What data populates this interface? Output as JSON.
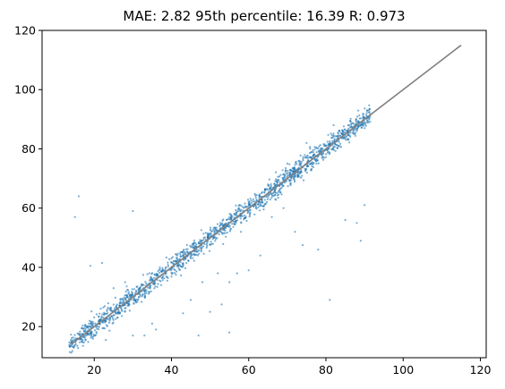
{
  "chart_data": {
    "type": "scatter",
    "title": "MAE: 2.82 95th percentile: 16.39 R: 0.973",
    "xlabel": "",
    "ylabel": "",
    "xlim": [
      6.5,
      121.5
    ],
    "ylim": [
      9.5,
      120
    ],
    "x_ticks": [
      20,
      40,
      60,
      80,
      100,
      120
    ],
    "y_ticks": [
      20,
      40,
      60,
      80,
      100,
      120
    ],
    "grid": false,
    "legend": "none",
    "point_color": "#1f77b4",
    "reference_line": {
      "color": "#808080",
      "x": [
        14,
        115
      ],
      "y": [
        14,
        115
      ]
    },
    "series": [
      {
        "values": [
          [
            16,
            64
          ],
          [
            15,
            57
          ],
          [
            30,
            59
          ],
          [
            14,
            15.5
          ],
          [
            19,
            40.5
          ],
          [
            22,
            41.5
          ],
          [
            23,
            15.5
          ],
          [
            24,
            22
          ],
          [
            26,
            23
          ],
          [
            30,
            17
          ],
          [
            33,
            17
          ],
          [
            35,
            21
          ],
          [
            36,
            19
          ],
          [
            40,
            43
          ],
          [
            43,
            24.5
          ],
          [
            45,
            29
          ],
          [
            47,
            17
          ],
          [
            50,
            25
          ],
          [
            53,
            27.5
          ],
          [
            55,
            18
          ],
          [
            57,
            38
          ],
          [
            60,
            39
          ],
          [
            62,
            62
          ],
          [
            63,
            44
          ],
          [
            66,
            57
          ],
          [
            69,
            60
          ],
          [
            72,
            52
          ],
          [
            74,
            47.5
          ],
          [
            78,
            46
          ],
          [
            81,
            29
          ],
          [
            85,
            56
          ],
          [
            88,
            55
          ],
          [
            89,
            49
          ],
          [
            90,
            61
          ],
          [
            70,
            75
          ],
          [
            75,
            82
          ],
          [
            25,
            33
          ],
          [
            28,
            35
          ],
          [
            48,
            35
          ],
          [
            52,
            38
          ],
          [
            55,
            35
          ],
          [
            58,
            52
          ],
          [
            65,
            68
          ],
          [
            82,
            88
          ],
          [
            86,
            88
          ],
          [
            88,
            86
          ],
          [
            90,
            87
          ],
          [
            91,
            89
          ]
        ]
      }
    ]
  }
}
